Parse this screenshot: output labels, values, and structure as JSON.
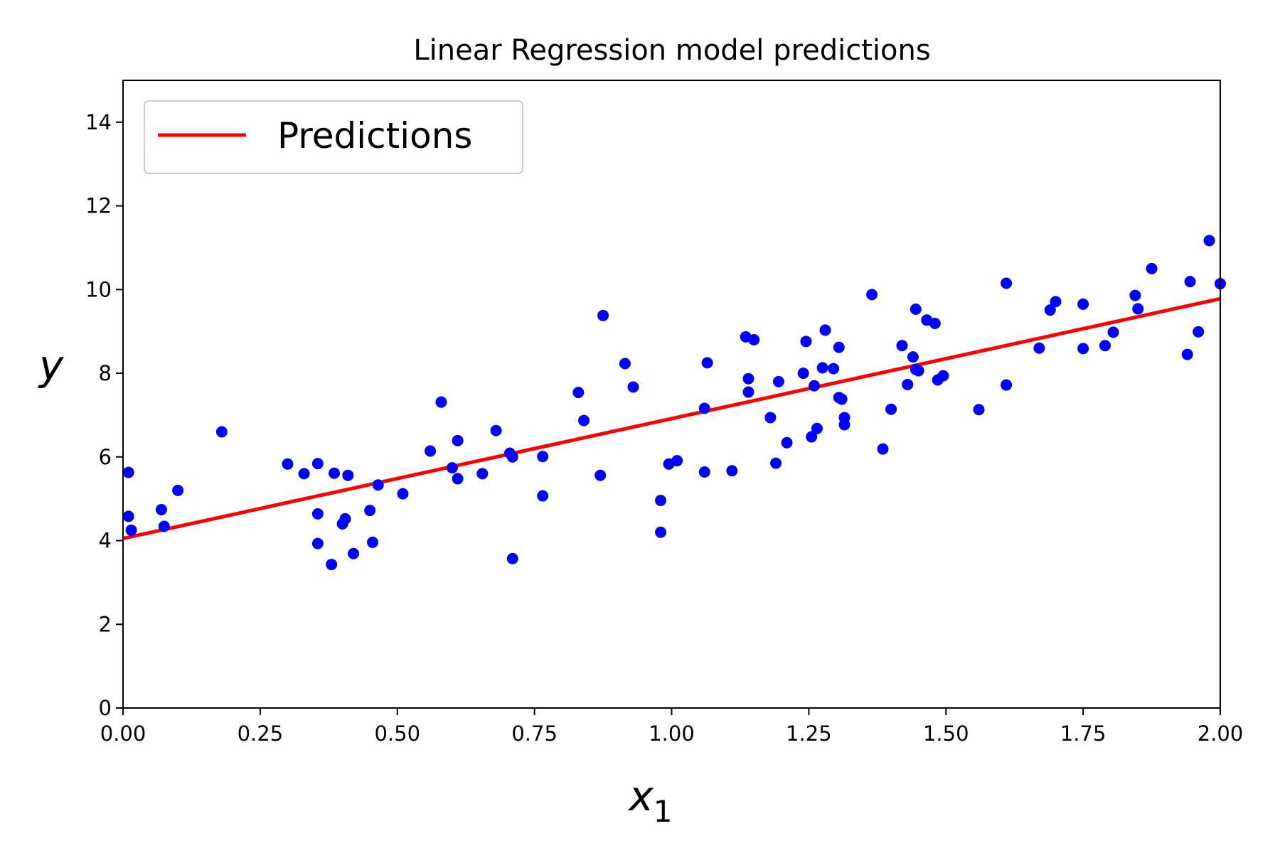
{
  "colors": {
    "points": "#0000ff",
    "line": "#ff0000",
    "axes": "#000000",
    "background": "#ffffff",
    "legend_border": "#cccccc"
  },
  "chart_data": {
    "type": "scatter",
    "title": "Linear Regression model predictions",
    "xlabel": "x",
    "xlabel_subscript": "1",
    "ylabel": "y",
    "xlim": [
      0,
      2
    ],
    "ylim": [
      0,
      15
    ],
    "grid": false,
    "legend": {
      "placement": "top-left",
      "entries": [
        "Predictions"
      ]
    },
    "x_ticks": [
      "0.00",
      "0.25",
      "0.50",
      "0.75",
      "1.00",
      "1.25",
      "1.50",
      "1.75",
      "2.00"
    ],
    "y_ticks": [
      "0",
      "2",
      "4",
      "6",
      "8",
      "10",
      "12",
      "14"
    ],
    "series": [
      {
        "kind": "scatter",
        "color": "#0000ff",
        "points": [
          [
            0.01,
            5.63
          ],
          [
            0.01,
            4.58
          ],
          [
            0.015,
            4.25
          ],
          [
            0.07,
            4.74
          ],
          [
            0.075,
            4.34
          ],
          [
            0.1,
            5.2
          ],
          [
            0.18,
            6.6
          ],
          [
            0.3,
            5.83
          ],
          [
            0.33,
            5.6
          ],
          [
            0.355,
            5.84
          ],
          [
            0.355,
            4.64
          ],
          [
            0.355,
            3.93
          ],
          [
            0.38,
            3.43
          ],
          [
            0.385,
            5.61
          ],
          [
            0.4,
            4.4
          ],
          [
            0.405,
            4.52
          ],
          [
            0.41,
            5.56
          ],
          [
            0.42,
            3.69
          ],
          [
            0.45,
            4.72
          ],
          [
            0.455,
            3.96
          ],
          [
            0.465,
            5.33
          ],
          [
            0.51,
            5.12
          ],
          [
            0.56,
            6.14
          ],
          [
            0.58,
            7.31
          ],
          [
            0.6,
            5.74
          ],
          [
            0.61,
            5.48
          ],
          [
            0.61,
            6.39
          ],
          [
            0.655,
            5.6
          ],
          [
            0.68,
            6.63
          ],
          [
            0.705,
            6.09
          ],
          [
            0.71,
            6.0
          ],
          [
            0.71,
            3.57
          ],
          [
            0.765,
            6.01
          ],
          [
            0.765,
            5.07
          ],
          [
            0.83,
            7.54
          ],
          [
            0.84,
            6.87
          ],
          [
            0.87,
            5.56
          ],
          [
            0.875,
            9.38
          ],
          [
            0.915,
            8.23
          ],
          [
            0.93,
            7.67
          ],
          [
            0.98,
            4.96
          ],
          [
            0.98,
            4.2
          ],
          [
            0.995,
            5.83
          ],
          [
            1.01,
            5.91
          ],
          [
            1.06,
            7.16
          ],
          [
            1.06,
            5.64
          ],
          [
            1.065,
            8.25
          ],
          [
            1.11,
            5.67
          ],
          [
            1.135,
            8.87
          ],
          [
            1.14,
            7.87
          ],
          [
            1.14,
            7.55
          ],
          [
            1.15,
            8.8
          ],
          [
            1.18,
            6.94
          ],
          [
            1.19,
            5.85
          ],
          [
            1.195,
            7.8
          ],
          [
            1.21,
            6.34
          ],
          [
            1.24,
            8.0
          ],
          [
            1.245,
            8.76
          ],
          [
            1.255,
            6.48
          ],
          [
            1.26,
            7.7
          ],
          [
            1.265,
            6.68
          ],
          [
            1.275,
            8.13
          ],
          [
            1.28,
            9.03
          ],
          [
            1.295,
            8.11
          ],
          [
            1.305,
            7.42
          ],
          [
            1.305,
            8.62
          ],
          [
            1.31,
            7.38
          ],
          [
            1.315,
            6.94
          ],
          [
            1.315,
            6.77
          ],
          [
            1.365,
            9.88
          ],
          [
            1.385,
            6.19
          ],
          [
            1.4,
            7.14
          ],
          [
            1.42,
            8.66
          ],
          [
            1.43,
            7.73
          ],
          [
            1.44,
            8.39
          ],
          [
            1.445,
            8.09
          ],
          [
            1.445,
            9.53
          ],
          [
            1.45,
            8.06
          ],
          [
            1.465,
            9.27
          ],
          [
            1.48,
            9.19
          ],
          [
            1.485,
            7.84
          ],
          [
            1.495,
            7.94
          ],
          [
            1.56,
            7.13
          ],
          [
            1.61,
            7.72
          ],
          [
            1.61,
            10.15
          ],
          [
            1.67,
            8.6
          ],
          [
            1.69,
            9.51
          ],
          [
            1.7,
            9.71
          ],
          [
            1.75,
            8.59
          ],
          [
            1.75,
            9.65
          ],
          [
            1.79,
            8.66
          ],
          [
            1.805,
            8.98
          ],
          [
            1.845,
            9.86
          ],
          [
            1.85,
            9.54
          ],
          [
            1.875,
            10.5
          ],
          [
            1.94,
            8.45
          ],
          [
            1.945,
            10.19
          ],
          [
            1.96,
            8.99
          ],
          [
            1.98,
            11.17
          ],
          [
            2.0,
            10.14
          ]
        ]
      },
      {
        "kind": "line",
        "name": "Predictions",
        "color": "#ff0000",
        "x": [
          0,
          2
        ],
        "y": [
          4.05,
          9.78
        ]
      }
    ]
  }
}
